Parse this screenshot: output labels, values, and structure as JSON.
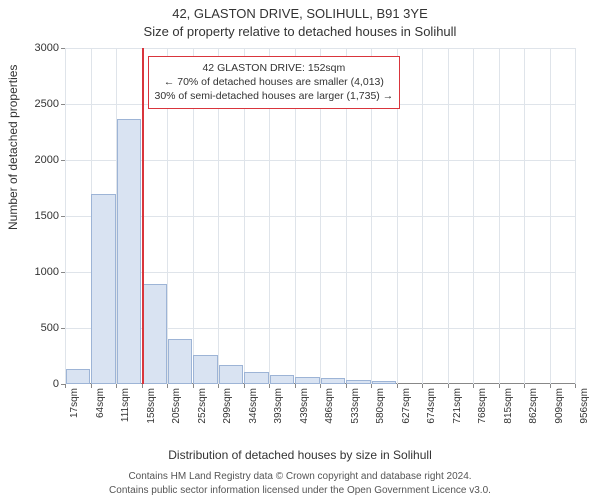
{
  "title_line1": "42, GLASTON DRIVE, SOLIHULL, B91 3YE",
  "title_line2": "Size of property relative to detached houses in Solihull",
  "y_axis_label": "Number of detached properties",
  "x_axis_label": "Distribution of detached houses by size in Solihull",
  "footer_line1": "Contains HM Land Registry data © Crown copyright and database right 2024.",
  "footer_line2": "Contains public sector information licensed under the Open Government Licence v3.0.",
  "chart": {
    "type": "histogram",
    "background_color": "#ffffff",
    "grid_color": "#dfe4ea",
    "axis_color": "#888888",
    "bar_fill": "#d9e3f2",
    "bar_stroke": "#9db4d6",
    "reference_line_color": "#d9353c",
    "reference_line_x_index": 3,
    "y": {
      "min": 0,
      "max": 3000,
      "ticks": [
        0,
        500,
        1000,
        1500,
        2000,
        2500,
        3000
      ]
    },
    "x_ticks": [
      "17sqm",
      "64sqm",
      "111sqm",
      "158sqm",
      "205sqm",
      "252sqm",
      "299sqm",
      "346sqm",
      "393sqm",
      "439sqm",
      "486sqm",
      "533sqm",
      "580sqm",
      "627sqm",
      "674sqm",
      "721sqm",
      "768sqm",
      "815sqm",
      "862sqm",
      "909sqm",
      "956sqm"
    ],
    "bars": [
      130,
      1700,
      2370,
      890,
      400,
      260,
      170,
      110,
      80,
      60,
      50,
      40,
      30,
      0,
      0,
      0,
      0,
      0,
      0,
      0
    ],
    "annotation": {
      "border_color": "#d9353c",
      "line1": "42 GLASTON DRIVE: 152sqm",
      "line2": "← 70% of detached houses are smaller (4,013)",
      "line3": "30% of semi-detached houses are larger (1,735) →"
    }
  }
}
